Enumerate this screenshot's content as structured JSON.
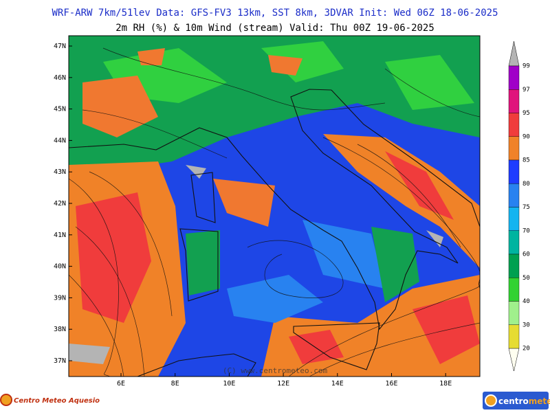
{
  "header": {
    "title": "WRF-ARW 7km/51lev  Data: GFS-FV3 13km, SST 8km, 3DVAR  Init: Wed 06Z 18-06-2025",
    "subtitle": "2m RH (%) & 10m Wind (stream)  Valid: Thu 00Z 19-06-2025"
  },
  "map": {
    "lat_labels": [
      "47N",
      "46N",
      "45N",
      "44N",
      "43N",
      "42N",
      "41N",
      "40N",
      "39N",
      "38N",
      "37N"
    ],
    "lon_labels": [
      "6E",
      "8E",
      "10E",
      "12E",
      "14E",
      "16E",
      "18E"
    ],
    "watermark": "(C) www.centrometeo.com"
  },
  "colorbar": {
    "labels": [
      "99",
      "97",
      "95",
      "90",
      "85",
      "80",
      "75",
      "70",
      "60",
      "50",
      "40",
      "30",
      "20"
    ]
  },
  "logos": {
    "left": "Centro Meteo Aquesio",
    "right_parts": [
      "centro",
      "meteo"
    ]
  }
}
